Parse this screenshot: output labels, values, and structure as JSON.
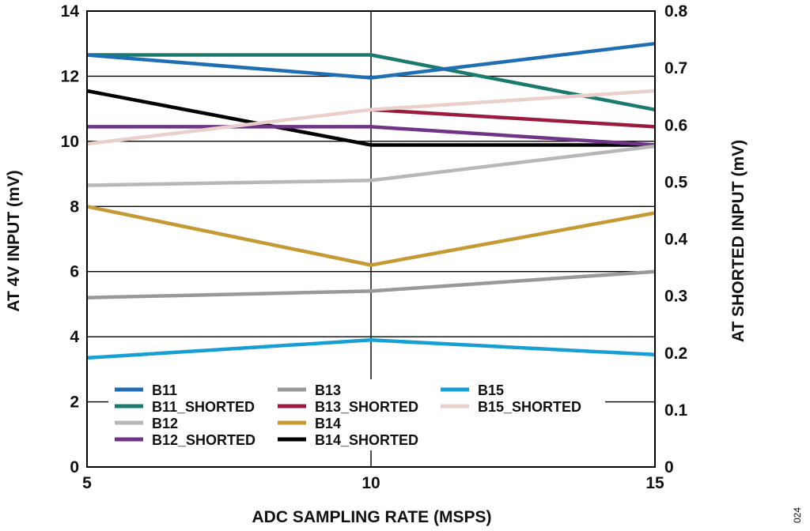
{
  "figure_id": "024",
  "chart_data": {
    "type": "line",
    "xlabel": "ADC SAMPLING RATE (MSPS)",
    "ylabel": "AT 4V INPUT (mV)",
    "y2label": "AT SHORTED INPUT (mV)",
    "x": [
      5,
      10,
      15
    ],
    "xticks": [
      "5",
      "10",
      "15"
    ],
    "xlim": [
      5,
      15
    ],
    "ylim": [
      0,
      14
    ],
    "yticks": [
      "0",
      "2",
      "4",
      "6",
      "8",
      "10",
      "12",
      "14"
    ],
    "y2lim": [
      0,
      0.8
    ],
    "y2ticks": [
      "0",
      "0.1",
      "0.2",
      "0.3",
      "0.4",
      "0.5",
      "0.6",
      "0.7",
      "0.8"
    ],
    "grid": true,
    "legend_position": "bottom-left",
    "series": [
      {
        "name": "B11",
        "axis": "left",
        "color": "#1f6eb3",
        "values": [
          12.65,
          11.95,
          13.0
        ]
      },
      {
        "name": "B11_SHORTED",
        "axis": "right",
        "color": "#1a7a6e",
        "values": [
          0.723,
          0.723,
          0.627
        ]
      },
      {
        "name": "B12",
        "axis": "left",
        "color": "#b7b7b7",
        "values": [
          8.65,
          8.8,
          9.85
        ]
      },
      {
        "name": "B12_SHORTED",
        "axis": "right",
        "color": "#6f3388",
        "values": [
          0.597,
          0.597,
          0.565
        ]
      },
      {
        "name": "B13",
        "axis": "left",
        "color": "#999999",
        "values": [
          5.2,
          5.4,
          6.0
        ]
      },
      {
        "name": "B13_SHORTED",
        "axis": "right",
        "color": "#9b1b3e",
        "values": [
          null,
          0.627,
          0.597
        ]
      },
      {
        "name": "B14",
        "axis": "left",
        "color": "#c59a35",
        "values": [
          8.0,
          6.2,
          7.8
        ]
      },
      {
        "name": "B14_SHORTED",
        "axis": "right",
        "color": "#000000",
        "values": [
          0.66,
          0.565,
          0.565
        ]
      },
      {
        "name": "B15",
        "axis": "left",
        "color": "#179fd4",
        "values": [
          3.35,
          3.9,
          3.45
        ]
      },
      {
        "name": "B15_SHORTED",
        "axis": "right",
        "color": "#ead0cd",
        "values": [
          0.567,
          0.627,
          0.66
        ]
      }
    ]
  }
}
